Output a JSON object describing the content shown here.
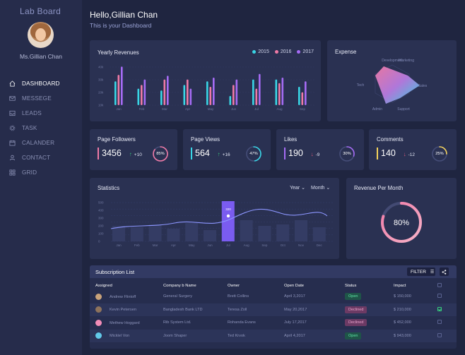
{
  "sidebar": {
    "brand": "Lab Board",
    "user_name": "Ms.Gillian Chan",
    "items": [
      {
        "label": "DASHBOARD",
        "icon": "home-icon",
        "active": true
      },
      {
        "label": "MESSEGE",
        "icon": "mail-icon",
        "active": false
      },
      {
        "label": "LEADS",
        "icon": "inbox-icon",
        "active": false
      },
      {
        "label": "TASK",
        "icon": "gear-icon",
        "active": false
      },
      {
        "label": "CALANDER",
        "icon": "calendar-icon",
        "active": false
      },
      {
        "label": "CONTACT",
        "icon": "user-icon",
        "active": false
      },
      {
        "label": "GRID",
        "icon": "grid-icon",
        "active": false
      }
    ]
  },
  "header": {
    "greeting": "Hello,Gillian Chan",
    "subtitle": "This is your Dashboard"
  },
  "colors": {
    "accent_cyan": "#39d6e6",
    "accent_pink": "#f07aa6",
    "accent_purple": "#a66cf5",
    "accent_yellow": "#f5d35c",
    "background": "#1f2540",
    "card": "#2a3152"
  },
  "yearly_revenues": {
    "title": "Yearly Revenues",
    "legend": [
      {
        "label": "2015",
        "color": "#39d6e6"
      },
      {
        "label": "2016",
        "color": "#f07aa6"
      },
      {
        "label": "2017",
        "color": "#a66cf5"
      }
    ]
  },
  "expense": {
    "title": "Expense",
    "axes": [
      "Development",
      "Marketing",
      "Sales",
      "Support",
      "Admin",
      "Tech"
    ]
  },
  "stats": [
    {
      "title": "Page Followers",
      "value": "3456",
      "delta": "+10",
      "direction": "up",
      "percent": "85%",
      "ring_value": 85,
      "color": "#f07aa6"
    },
    {
      "title": "Page Views",
      "value": "564",
      "delta": "+16",
      "direction": "up",
      "percent": "47%",
      "ring_value": 47,
      "color": "#39d6e6"
    },
    {
      "title": "Likes",
      "value": "190",
      "delta": "-9",
      "direction": "down",
      "percent": "30%",
      "ring_value": 30,
      "color": "#a66cf5"
    },
    {
      "title": "Comments",
      "value": "140",
      "delta": "-12",
      "direction": "down",
      "percent": "25%",
      "ring_value": 25,
      "color": "#f5d35c"
    }
  ],
  "statistics": {
    "title": "Statistics",
    "dropdown_year": "Year",
    "dropdown_month": "Month",
    "highlight_label": "320"
  },
  "revenue_per_month": {
    "title": "Revenue Per Month",
    "value": "80%",
    "percent": 80
  },
  "subscription": {
    "title": "Subscription List",
    "filter_label": "FILTER",
    "columns": [
      "Assigned",
      "Company b Name",
      "Owner",
      "Open Date",
      "Status",
      "Impact"
    ],
    "rows": [
      {
        "assigned": "Andrew Flintoff",
        "company": "General Surgery",
        "owner": "Brett Collins",
        "open_date": "April 3,2017",
        "status": "Open",
        "impact": "$ 150,000",
        "checked": false,
        "avatar_color": "#c8a27a"
      },
      {
        "assigned": "Kevin Petersen",
        "company": "Bangladesh Bank LTD",
        "owner": "Teresa Zoll",
        "open_date": "May 20,2017",
        "status": "Declined",
        "impact": "$ 210,000",
        "checked": true,
        "avatar_color": "#8e735c"
      },
      {
        "assigned": "Methew Hoggard",
        "company": "Rib System Ltd.",
        "owner": "Rohanda Evans",
        "open_date": "July 17,2017",
        "status": "Declined",
        "impact": "$ 452,000",
        "checked": false,
        "avatar_color": "#f28db8"
      },
      {
        "assigned": "Micklel Von",
        "company": "Joom Shaper",
        "owner": "Ted Krvok",
        "open_date": "April 4,2017",
        "status": "Open",
        "impact": "$ 943,000",
        "checked": false,
        "avatar_color": "#62c9e8"
      }
    ]
  }
}
